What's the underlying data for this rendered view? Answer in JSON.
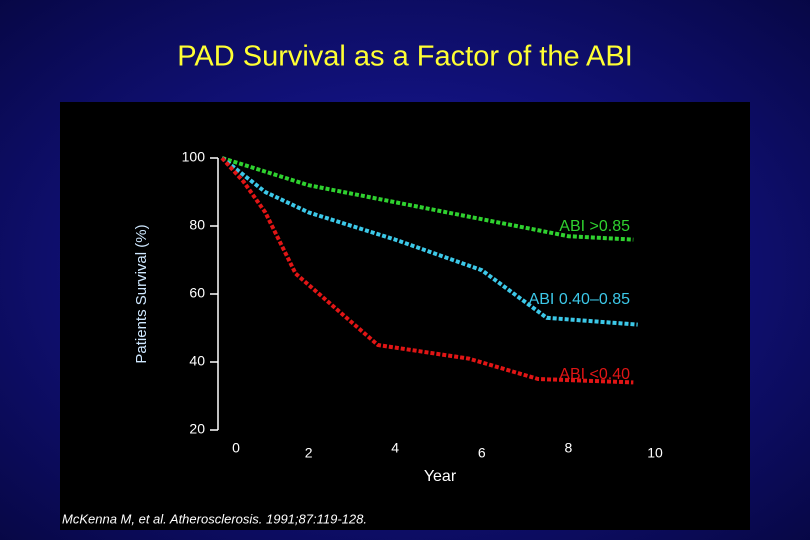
{
  "chart_data": {
    "type": "line",
    "title": "PAD Survival as a Factor of the ABI",
    "x_label": "Year",
    "y_label": "Patients Survival (%)",
    "footnote": "McKenna M, et al. Atherosclerosis. 1991;87:119-128.",
    "xlim": [
      0,
      10
    ],
    "xticks": [
      0,
      2,
      4,
      6,
      8,
      10
    ],
    "ylim": [
      20,
      100
    ],
    "yticks": [
      20,
      40,
      60,
      80,
      100
    ],
    "series": [
      {
        "name": "ABI >0.85",
        "color": "#2fd12f",
        "x": [
          0,
          1,
          2,
          4,
          6,
          8,
          9.5
        ],
        "values": [
          100,
          96,
          92,
          87,
          82,
          77,
          76
        ]
      },
      {
        "name": "ABI 0.40–0.85",
        "color": "#3cc8e8",
        "x": [
          0,
          1,
          2,
          4,
          6,
          7.5,
          9.6
        ],
        "values": [
          100,
          90,
          84,
          76,
          67,
          53,
          51
        ]
      },
      {
        "name": "ABI <0.40",
        "color": "#e01515",
        "x": [
          0,
          0.5,
          1,
          1.7,
          3.6,
          5.7,
          7.3,
          9.5
        ],
        "values": [
          100,
          93,
          84,
          66,
          45,
          41,
          35,
          34
        ]
      }
    ]
  }
}
